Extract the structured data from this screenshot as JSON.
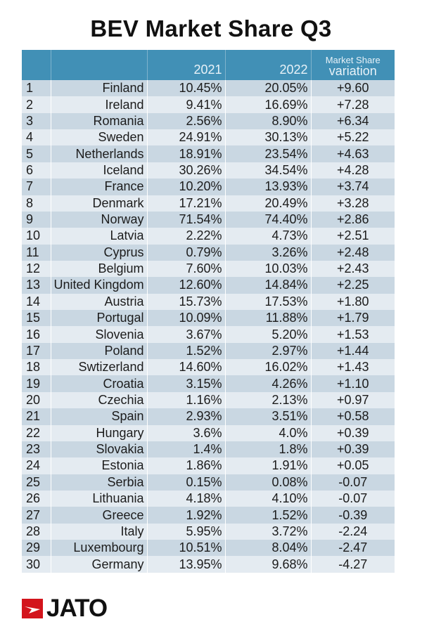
{
  "chart_data": {
    "type": "table",
    "title": "BEV Market Share Q3",
    "columns": [
      "",
      "",
      "2021",
      "2022",
      "Market Share",
      "variation"
    ],
    "rows": [
      [
        "1",
        "Finland",
        "10.45%",
        "20.05%",
        "+9.60"
      ],
      [
        "2",
        "Ireland",
        "9.41%",
        "16.69%",
        "+7.28"
      ],
      [
        "3",
        "Romania",
        "2.56%",
        "8.90%",
        "+6.34"
      ],
      [
        "4",
        "Sweden",
        "24.91%",
        "30.13%",
        "+5.22"
      ],
      [
        "5",
        "Netherlands",
        "18.91%",
        "23.54%",
        "+4.63"
      ],
      [
        "6",
        "Iceland",
        "30.26%",
        "34.54%",
        "+4.28"
      ],
      [
        "7",
        "France",
        "10.20%",
        "13.93%",
        "+3.74"
      ],
      [
        "8",
        "Denmark",
        "17.21%",
        "20.49%",
        "+3.28"
      ],
      [
        "9",
        "Norway",
        "71.54%",
        "74.40%",
        "+2.86"
      ],
      [
        "10",
        "Latvia",
        "2.22%",
        "4.73%",
        "+2.51"
      ],
      [
        "11",
        "Cyprus",
        "0.79%",
        "3.26%",
        "+2.48"
      ],
      [
        "12",
        "Belgium",
        "7.60%",
        "10.03%",
        "+2.43"
      ],
      [
        "13",
        "United Kingdom",
        "12.60%",
        "14.84%",
        "+2.25"
      ],
      [
        "14",
        "Austria",
        "15.73%",
        "17.53%",
        "+1.80"
      ],
      [
        "15",
        "Portugal",
        "10.09%",
        "11.88%",
        "+1.79"
      ],
      [
        "16",
        "Slovenia",
        "3.67%",
        "5.20%",
        "+1.53"
      ],
      [
        "17",
        "Poland",
        "1.52%",
        "2.97%",
        "+1.44"
      ],
      [
        "18",
        "Swtizerland",
        "14.60%",
        "16.02%",
        "+1.43"
      ],
      [
        "19",
        "Croatia",
        "3.15%",
        "4.26%",
        "+1.10"
      ],
      [
        "20",
        "Czechia",
        "1.16%",
        "2.13%",
        "+0.97"
      ],
      [
        "21",
        "Spain",
        "2.93%",
        "3.51%",
        "+0.58"
      ],
      [
        "22",
        "Hungary",
        "3.6%",
        "4.0%",
        "+0.39"
      ],
      [
        "23",
        "Slovakia",
        "1.4%",
        "1.8%",
        "+0.39"
      ],
      [
        "24",
        "Estonia",
        "1.86%",
        "1.91%",
        "+0.05"
      ],
      [
        "25",
        "Serbia",
        "0.15%",
        "0.08%",
        "-0.07"
      ],
      [
        "26",
        "Lithuania",
        "4.18%",
        "4.10%",
        "-0.07"
      ],
      [
        "27",
        "Greece",
        "1.92%",
        "1.52%",
        "-0.39"
      ],
      [
        "28",
        "Italy",
        "5.95%",
        "3.72%",
        "-2.24"
      ],
      [
        "29",
        "Luxembourg",
        "10.51%",
        "8.04%",
        "-2.47"
      ],
      [
        "30",
        "Germany",
        "13.95%",
        "9.68%",
        "-4.27"
      ]
    ]
  },
  "colors": {
    "header": "#4190b6",
    "row_odd": "#c9d7e2",
    "row_even": "#e4ebf1",
    "logo_red": "#d3141c"
  },
  "logo": {
    "text": "JATO"
  }
}
